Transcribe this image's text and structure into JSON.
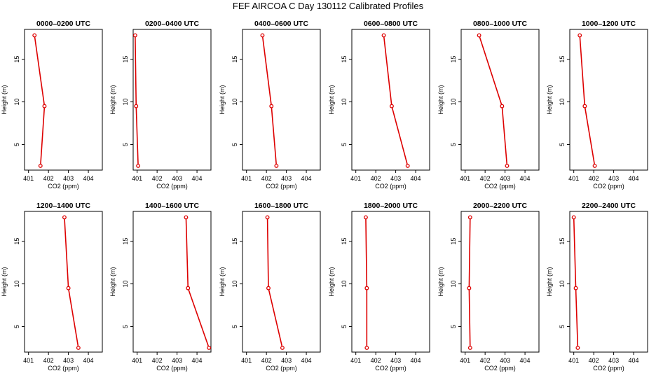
{
  "title": "FEF AIRCOA C  Day 130112  Calibrated Profiles",
  "colors": {
    "profile": "#dd0000",
    "axis": "#000000",
    "background": "#ffffff"
  },
  "chart_data": {
    "type": "line",
    "xlabel": "CO2 (ppm)",
    "ylabel": "Height (m)",
    "xlim": [
      400.8,
      404.7
    ],
    "ylim": [
      2,
      18.5
    ],
    "xticks": [
      401,
      402,
      403,
      404
    ],
    "yticks": [
      5,
      10,
      15
    ],
    "heights": [
      2.5,
      9.5,
      17.8
    ],
    "panels": [
      {
        "title": "0000–0200 UTC",
        "co2": [
          401.6,
          401.8,
          401.3
        ]
      },
      {
        "title": "0200–0400 UTC",
        "co2": [
          401.05,
          400.95,
          400.9
        ]
      },
      {
        "title": "0400–0600 UTC",
        "co2": [
          402.5,
          402.25,
          401.8
        ]
      },
      {
        "title": "0600–0800 UTC",
        "co2": [
          403.6,
          402.8,
          402.4
        ]
      },
      {
        "title": "0800–1000 UTC",
        "co2": [
          403.1,
          402.85,
          401.7
        ]
      },
      {
        "title": "1000–1200 UTC",
        "co2": [
          402.05,
          401.55,
          401.3
        ]
      },
      {
        "title": "1200–1400 UTC",
        "co2": [
          403.5,
          403.0,
          402.8
        ]
      },
      {
        "title": "1400–1600 UTC",
        "co2": [
          404.6,
          403.55,
          403.45
        ]
      },
      {
        "title": "1600–1800 UTC",
        "co2": [
          402.8,
          402.1,
          402.05
        ]
      },
      {
        "title": "1800–2000 UTC",
        "co2": [
          401.55,
          401.55,
          401.5
        ]
      },
      {
        "title": "2000–2200 UTC",
        "co2": [
          401.25,
          401.2,
          401.25
        ]
      },
      {
        "title": "2200–2400 UTC",
        "co2": [
          401.2,
          401.1,
          401.0
        ]
      }
    ]
  }
}
